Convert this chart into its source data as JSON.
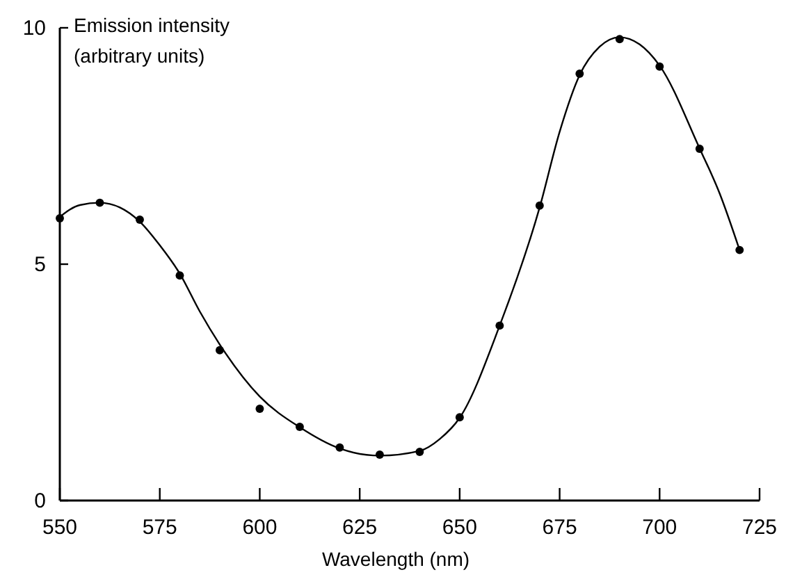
{
  "chart_data": {
    "type": "scatter",
    "xlabel": "Wavelength (nm)",
    "ylabel": "Emission intensity\n(arbitrary units)",
    "xlim": [
      550,
      725
    ],
    "xticks": [
      550,
      575,
      600,
      625,
      650,
      675,
      700,
      725
    ],
    "ylim": [
      0,
      10
    ],
    "yticks": [
      0,
      5,
      10
    ],
    "grid": false,
    "series": [
      {
        "color": "#000000",
        "marker": "circle",
        "x": [
          550,
          560,
          570,
          580,
          590,
          600,
          610,
          620,
          630,
          640,
          650,
          660,
          670,
          680,
          690,
          700,
          710,
          720
        ],
        "values": [
          5.97,
          6.3,
          5.94,
          4.76,
          3.18,
          1.94,
          1.56,
          1.12,
          0.97,
          1.03,
          1.76,
          3.7,
          6.24,
          9.03,
          9.76,
          9.18,
          7.44,
          5.3
        ]
      },
      {
        "type": "line",
        "color": "#000000",
        "line_style": "solid",
        "marker": "none",
        "x": [
          550,
          555,
          560,
          565,
          570,
          575,
          580,
          585,
          590,
          600,
          610,
          620,
          630,
          640,
          645,
          650,
          660,
          670,
          675,
          680,
          685,
          690,
          695,
          700,
          710,
          715,
          720
        ],
        "values": [
          6.0,
          6.25,
          6.3,
          6.2,
          5.9,
          5.4,
          4.8,
          4.0,
          3.3,
          2.2,
          1.55,
          1.1,
          0.95,
          1.05,
          1.3,
          1.75,
          3.7,
          6.2,
          7.8,
          9.0,
          9.6,
          9.8,
          9.65,
          9.2,
          7.45,
          6.5,
          5.3
        ]
      }
    ]
  }
}
